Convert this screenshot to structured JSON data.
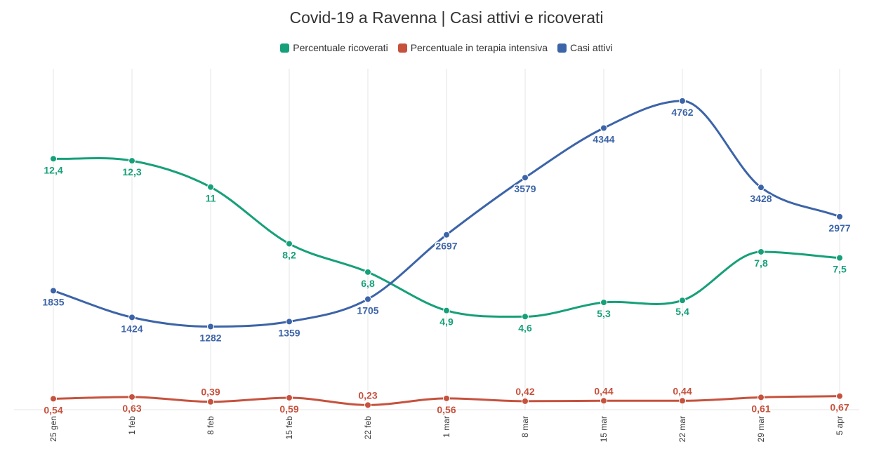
{
  "chart_data": {
    "type": "line",
    "title": "Covid-19 a Ravenna | Casi attivi e ricoverati",
    "categories": [
      "25 gen",
      "1 feb",
      "8 feb",
      "15 feb",
      "22 feb",
      "1 mar",
      "8 mar",
      "15 mar",
      "22 mar",
      "29 mar",
      "5 apr"
    ],
    "series": [
      {
        "name": "Percentuale ricoverati",
        "color": "#16a079",
        "values": [
          12.4,
          12.3,
          11,
          8.2,
          6.8,
          4.9,
          4.6,
          5.3,
          5.4,
          7.8,
          7.5
        ],
        "labels": [
          "12,4",
          "12,3",
          "11",
          "8,2",
          "6,8",
          "4,9",
          "4,6",
          "5,3",
          "5,4",
          "7,8",
          "7,5"
        ],
        "ylim": [
          0,
          16.5
        ]
      },
      {
        "name": "Percentuale in terapia intensiva",
        "color": "#c6523e",
        "values": [
          0.54,
          0.63,
          0.39,
          0.59,
          0.23,
          0.56,
          0.42,
          0.44,
          0.44,
          0.61,
          0.67
        ],
        "labels": [
          "0,54",
          "0,63",
          "0,39",
          "0,59",
          "0,23",
          "0,56",
          "0,42",
          "0,44",
          "0,44",
          "0,61",
          "0,67"
        ],
        "label_pos": [
          "below",
          "below",
          "above",
          "below",
          "above",
          "below",
          "above",
          "above",
          "above",
          "below",
          "below"
        ],
        "ylim": [
          0,
          16.5
        ]
      },
      {
        "name": "Casi attivi",
        "color": "#3c64a8",
        "values": [
          1835,
          1424,
          1282,
          1359,
          1705,
          2697,
          3579,
          4344,
          4762,
          3428,
          2977
        ],
        "labels": [
          "1835",
          "1424",
          "1282",
          "1359",
          "1705",
          "2697",
          "3579",
          "4344",
          "4762",
          "3428",
          "2977"
        ],
        "ylim": [
          0,
          5150
        ]
      }
    ],
    "grid": "vertical",
    "legend": "top-center"
  }
}
